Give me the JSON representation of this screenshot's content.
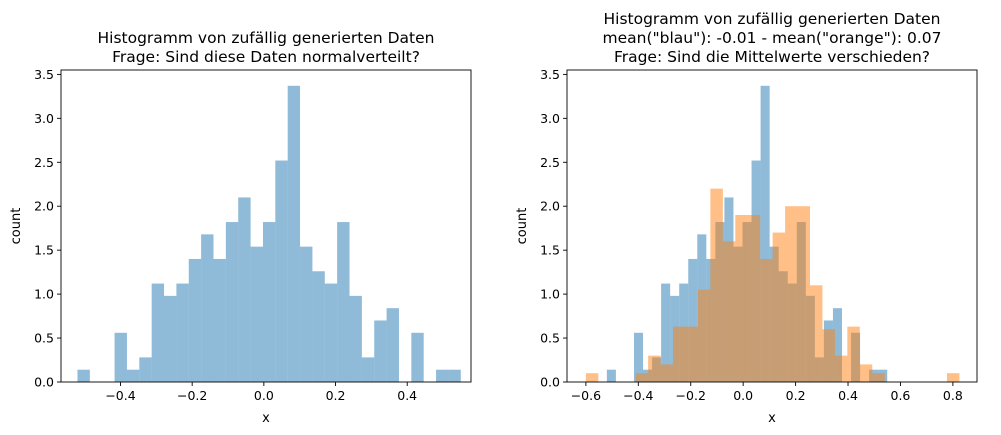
{
  "chart_data": [
    {
      "type": "bar",
      "title": [
        "Histogramm von zufällig generierten Daten",
        "Frage: Sind diese Daten normalverteilt?"
      ],
      "xlabel": "x",
      "ylabel": "count",
      "xlim": [
        -0.566,
        0.578
      ],
      "ylim": [
        0,
        3.55
      ],
      "xticks": [
        -0.4,
        -0.2,
        0.0,
        0.2,
        0.4
      ],
      "xtick_labels": [
        "−0.4",
        "−0.2",
        "0.0",
        "0.2",
        "0.4"
      ],
      "yticks": [
        0,
        0.5,
        1.0,
        1.5,
        2.0,
        2.5,
        3.0,
        3.5
      ],
      "ytick_labels": [
        "0.0",
        "0.5",
        "1.0",
        "1.5",
        "2.0",
        "2.5",
        "3.0",
        "3.5"
      ],
      "bin_edges": [
        -0.52,
        -0.4855,
        -0.451,
        -0.4165,
        -0.382,
        -0.3475,
        -0.313,
        -0.2785,
        -0.244,
        -0.2095,
        -0.175,
        -0.1405,
        -0.106,
        -0.0715,
        -0.037,
        -0.0025,
        0.032,
        0.0665,
        0.101,
        0.1355,
        0.17,
        0.2045,
        0.239,
        0.2735,
        0.308,
        0.3425,
        0.377,
        0.4115,
        0.446,
        0.4805,
        0.515,
        0.5495
      ],
      "series": [
        {
          "color": "#1f77b4",
          "alpha": 0.5,
          "values": [
            0.14,
            0,
            0,
            0.56,
            0.14,
            0.28,
            1.12,
            0.98,
            1.12,
            1.4,
            1.68,
            1.4,
            1.82,
            2.1,
            1.54,
            1.82,
            2.52,
            3.37,
            1.54,
            1.26,
            1.12,
            1.82,
            0.98,
            0.28,
            0.7,
            0.84,
            0,
            0.56,
            0,
            0.14,
            0.14
          ]
        }
      ]
    },
    {
      "type": "bar",
      "title": [
        "Histogramm von zufällig generierten Daten",
        "mean(\"blau\"): -0.01 - mean(\"orange\"): 0.07",
        "Frage: Sind die Mittelwerte verschieden?"
      ],
      "xlabel": "x",
      "ylabel": "count",
      "xlim": [
        -0.672,
        0.892
      ],
      "ylim": [
        0,
        3.55
      ],
      "xticks": [
        -0.6,
        -0.4,
        -0.2,
        0.0,
        0.2,
        0.4,
        0.6,
        0.8
      ],
      "xtick_labels": [
        "−0.6",
        "−0.4",
        "−0.2",
        "0.0",
        "0.2",
        "0.4",
        "0.6",
        "0.8"
      ],
      "yticks": [
        0,
        0.5,
        1.0,
        1.5,
        2.0,
        2.5,
        3.0,
        3.5
      ],
      "ytick_labels": [
        "0.0",
        "0.5",
        "1.0",
        "1.5",
        "2.0",
        "2.5",
        "3.0",
        "3.5"
      ],
      "series": [
        {
          "color": "#1f77b4",
          "alpha": 0.5,
          "bin_edges": [
            -0.52,
            -0.4855,
            -0.451,
            -0.4165,
            -0.382,
            -0.3475,
            -0.313,
            -0.2785,
            -0.244,
            -0.2095,
            -0.175,
            -0.1405,
            -0.106,
            -0.0715,
            -0.037,
            -0.0025,
            0.032,
            0.0665,
            0.101,
            0.1355,
            0.17,
            0.2045,
            0.239,
            0.2735,
            0.308,
            0.3425,
            0.377,
            0.4115,
            0.446,
            0.4805,
            0.515,
            0.5495
          ],
          "values": [
            0.14,
            0,
            0,
            0.56,
            0.14,
            0.28,
            1.12,
            0.98,
            1.12,
            1.4,
            1.68,
            1.4,
            1.82,
            2.1,
            1.54,
            1.82,
            2.52,
            3.37,
            1.54,
            1.26,
            1.12,
            1.82,
            0.98,
            0.28,
            0.7,
            0.84,
            0,
            0.56,
            0,
            0.14,
            0.14
          ]
        },
        {
          "color": "#ff7f0e",
          "alpha": 0.5,
          "bin_edges": [
            -0.6,
            -0.5525,
            -0.505,
            -0.4575,
            -0.41,
            -0.3625,
            -0.315,
            -0.2675,
            -0.22,
            -0.1725,
            -0.125,
            -0.0775,
            -0.03,
            0.0175,
            0.065,
            0.1125,
            0.16,
            0.2075,
            0.255,
            0.3025,
            0.35,
            0.3975,
            0.445,
            0.4925,
            0.54,
            0.5875,
            0.635,
            0.6825,
            0.73,
            0.7775,
            0.825
          ],
          "values": [
            0.1,
            0,
            0,
            0,
            0.1,
            0.3,
            0.2,
            0.63,
            0.63,
            1.05,
            2.2,
            1.6,
            1.9,
            1.9,
            1.4,
            1.7,
            2.0,
            2.0,
            1.1,
            0.6,
            0.3,
            0.63,
            0.2,
            0.1,
            0,
            0,
            0,
            0,
            0,
            0.1
          ]
        }
      ]
    }
  ]
}
